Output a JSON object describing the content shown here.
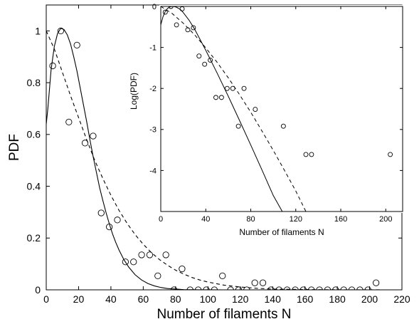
{
  "chart_data": [
    {
      "type": "scatter",
      "panel": "main",
      "xlabel": "Number of filaments N",
      "ylabel": "PDF",
      "xlim": [
        0,
        220
      ],
      "ylim": [
        0,
        1.1
      ],
      "xticks": [
        0,
        20,
        40,
        60,
        80,
        100,
        120,
        140,
        160,
        180,
        200,
        220
      ],
      "yticks": [
        0,
        0.2,
        0.4,
        0.6,
        0.8,
        1
      ],
      "grid": false,
      "legend": "none",
      "series": [
        {
          "style": "markers",
          "marker": "open-circle",
          "x": [
            4,
            9,
            14,
            19,
            24,
            29,
            34,
            39,
            44,
            49,
            54,
            59,
            64,
            69,
            74,
            79,
            84,
            89,
            94,
            99,
            104,
            109,
            114,
            119,
            124,
            129,
            134,
            139,
            144,
            149,
            154,
            159,
            164,
            169,
            174,
            179,
            184,
            189,
            194,
            199,
            204
          ],
          "y": [
            0.865,
            1.0,
            0.648,
            0.945,
            0.567,
            0.594,
            0.297,
            0.243,
            0.27,
            0.108,
            0.108,
            0.135,
            0.135,
            0.054,
            0.135,
            0.0,
            0.081,
            0.0,
            0.0,
            0.0,
            0.0,
            0.054,
            0.0,
            0.0,
            0.0,
            0.027,
            0.027,
            0.0,
            0.0,
            0.0,
            0.0,
            0.0,
            0.0,
            0.0,
            0.0,
            0.0,
            0.0,
            0.0,
            0.0,
            0.0,
            0.027
          ]
        },
        {
          "style": "solid-line",
          "x": [
            0,
            1,
            3,
            5,
            7,
            9,
            11,
            13,
            15,
            17,
            19,
            21,
            23,
            25,
            27,
            29,
            31,
            33,
            35,
            37,
            39,
            41,
            43,
            45,
            48,
            51,
            55,
            59,
            63,
            67,
            71,
            75,
            80,
            85,
            90,
            95,
            100,
            110,
            120,
            130,
            140,
            150,
            170,
            200,
            210
          ],
          "y": [
            0.64,
            0.7,
            0.85,
            0.94,
            0.99,
            1.01,
            1.005,
            0.985,
            0.95,
            0.9,
            0.845,
            0.78,
            0.715,
            0.65,
            0.58,
            0.515,
            0.455,
            0.395,
            0.345,
            0.298,
            0.255,
            0.216,
            0.183,
            0.154,
            0.117,
            0.088,
            0.058,
            0.038,
            0.024,
            0.015,
            0.009,
            0.005,
            0.003,
            0.001,
            0.0005,
            0.0002,
            0.0001,
            0.0,
            0.0,
            0.0,
            0.0,
            0.0,
            0.0,
            0.0,
            0.0
          ]
        },
        {
          "style": "dashed-line",
          "x": [
            0,
            5,
            10,
            15,
            20,
            25,
            30,
            35,
            40,
            45,
            50,
            55,
            60,
            65,
            70,
            75,
            80,
            85,
            90,
            95,
            100,
            110,
            120,
            130,
            140,
            150,
            170,
            190,
            210
          ],
          "y": [
            1.0,
            0.93,
            0.84,
            0.75,
            0.665,
            0.58,
            0.5,
            0.43,
            0.365,
            0.307,
            0.257,
            0.213,
            0.176,
            0.144,
            0.117,
            0.095,
            0.076,
            0.061,
            0.048,
            0.038,
            0.03,
            0.018,
            0.011,
            0.006,
            0.003,
            0.002,
            0.0006,
            0.0002,
            0.0
          ]
        }
      ]
    },
    {
      "type": "scatter",
      "panel": "inset",
      "xlabel": "Number of filaments N",
      "ylabel": "Log(PDF)",
      "xlim": [
        0,
        215
      ],
      "ylim": [
        -5,
        0
      ],
      "xticks": [
        0,
        40,
        80,
        120,
        160,
        200
      ],
      "yticks": [
        0,
        -1,
        -2,
        -3,
        -4
      ],
      "grid": false,
      "legend": "none",
      "series": [
        {
          "style": "markers",
          "marker": "open-circle",
          "x": [
            4,
            9,
            14,
            19,
            24,
            29,
            34,
            39,
            44,
            49,
            54,
            59,
            64,
            69,
            74,
            84,
            109,
            129,
            134,
            204
          ],
          "y": [
            -0.14,
            0.0,
            -0.45,
            -0.06,
            -0.57,
            -0.52,
            -1.21,
            -1.41,
            -1.31,
            -2.22,
            -2.22,
            -2.0,
            -2.0,
            -2.92,
            -2.0,
            -2.51,
            -2.92,
            -3.61,
            -3.61,
            -3.61
          ]
        },
        {
          "style": "solid-line",
          "x": [
            0,
            2,
            4,
            6,
            8,
            10,
            12,
            14,
            16,
            18,
            20,
            25,
            30,
            40,
            50,
            60,
            70,
            80,
            90,
            100,
            108
          ],
          "y": [
            -0.45,
            -0.25,
            -0.12,
            -0.05,
            -0.01,
            0.0,
            -0.005,
            -0.02,
            -0.05,
            -0.09,
            -0.15,
            -0.33,
            -0.55,
            -1.07,
            -1.62,
            -2.19,
            -2.78,
            -3.38,
            -3.99,
            -4.61,
            -5.0
          ]
        },
        {
          "style": "dashed-line",
          "x": [
            0,
            10,
            20,
            30,
            40,
            50,
            60,
            70,
            80,
            90,
            100,
            110,
            120,
            129
          ],
          "y": [
            0.0,
            -0.17,
            -0.41,
            -0.69,
            -1.01,
            -1.36,
            -1.74,
            -2.15,
            -2.58,
            -3.04,
            -3.51,
            -4.0,
            -4.5,
            -5.0
          ]
        }
      ]
    }
  ]
}
